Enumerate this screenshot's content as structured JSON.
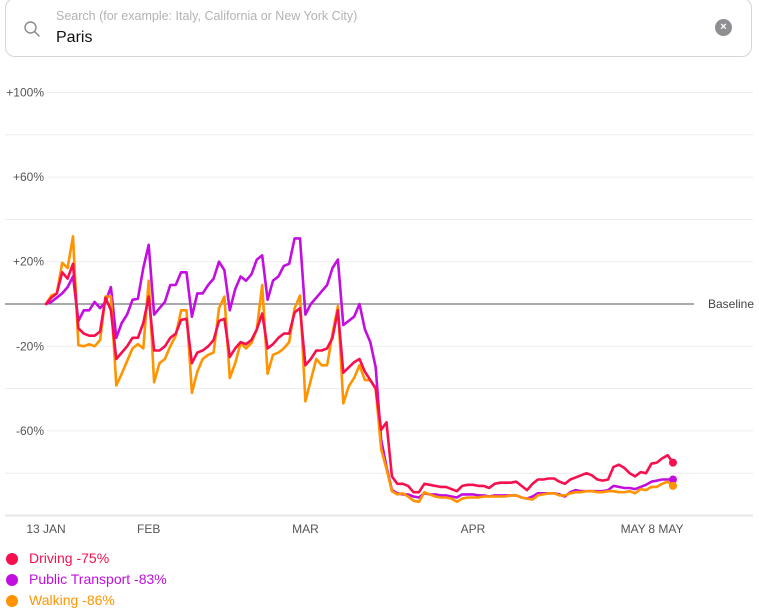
{
  "search": {
    "placeholder": "Search (for example: Italy, California or New York City)",
    "value": "Paris",
    "icon": "search-icon",
    "clear_icon": "clear-circle-icon"
  },
  "legend": [
    {
      "label": "Driving -75%",
      "color": "#f7104e"
    },
    {
      "label": "Public Transport -83%",
      "color": "#c20fe0"
    },
    {
      "label": "Walking -86%",
      "color": "#ff9400"
    }
  ],
  "chart_data": {
    "type": "line",
    "ylim": [
      -100,
      100
    ],
    "y_ticks": [
      {
        "value": 100,
        "label": "+100%"
      },
      {
        "value": 60,
        "label": "+60%"
      },
      {
        "value": 20,
        "label": "+20%"
      },
      {
        "value": -20,
        "label": "-20%"
      },
      {
        "value": -60,
        "label": "-60%"
      }
    ],
    "y_gridlines": [
      100,
      80,
      60,
      40,
      20,
      -20,
      -40,
      -60,
      -80
    ],
    "baseline": {
      "value": 0,
      "label": "Baseline"
    },
    "x_ticks": [
      {
        "index": 0,
        "label": "13 JAN"
      },
      {
        "index": 19,
        "label": "FEB"
      },
      {
        "index": 48,
        "label": "MAR"
      },
      {
        "index": 79,
        "label": "APR"
      },
      {
        "index": 109,
        "label": "MAY"
      },
      {
        "index": 116,
        "label": "8 MAY"
      }
    ],
    "grid": true,
    "legend_position": "bottom-left",
    "x": [
      "13 Jan",
      "14 Jan",
      "15 Jan",
      "16 Jan",
      "17 Jan",
      "18 Jan",
      "19 Jan",
      "20 Jan",
      "21 Jan",
      "22 Jan",
      "23 Jan",
      "24 Jan",
      "25 Jan",
      "26 Jan",
      "27 Jan",
      "28 Jan",
      "29 Jan",
      "30 Jan",
      "31 Jan",
      "1 Feb",
      "2 Feb",
      "3 Feb",
      "4 Feb",
      "5 Feb",
      "6 Feb",
      "7 Feb",
      "8 Feb",
      "9 Feb",
      "10 Feb",
      "11 Feb",
      "12 Feb",
      "13 Feb",
      "14 Feb",
      "15 Feb",
      "16 Feb",
      "17 Feb",
      "18 Feb",
      "19 Feb",
      "20 Feb",
      "21 Feb",
      "22 Feb",
      "23 Feb",
      "24 Feb",
      "25 Feb",
      "26 Feb",
      "27 Feb",
      "28 Feb",
      "29 Feb",
      "1 Mar",
      "2 Mar",
      "3 Mar",
      "4 Mar",
      "5 Mar",
      "6 Mar",
      "7 Mar",
      "8 Mar",
      "9 Mar",
      "10 Mar",
      "11 Mar",
      "12 Mar",
      "13 Mar",
      "14 Mar",
      "15 Mar",
      "16 Mar",
      "17 Mar",
      "18 Mar",
      "19 Mar",
      "20 Mar",
      "21 Mar",
      "22 Mar",
      "23 Mar",
      "24 Mar",
      "25 Mar",
      "26 Mar",
      "27 Mar",
      "28 Mar",
      "29 Mar",
      "30 Mar",
      "31 Mar",
      "1 Apr",
      "2 Apr",
      "3 Apr",
      "4 Apr",
      "5 Apr",
      "6 Apr",
      "7 Apr",
      "8 Apr",
      "9 Apr",
      "10 Apr",
      "11 Apr",
      "12 Apr",
      "13 Apr",
      "14 Apr",
      "15 Apr",
      "16 Apr",
      "17 Apr",
      "18 Apr",
      "19 Apr",
      "20 Apr",
      "21 Apr",
      "22 Apr",
      "23 Apr",
      "24 Apr",
      "25 Apr",
      "26 Apr",
      "27 Apr",
      "28 Apr",
      "29 Apr",
      "30 Apr",
      "1 May",
      "2 May",
      "3 May",
      "4 May",
      "5 May",
      "6 May",
      "7 May",
      "8 May"
    ],
    "series": [
      {
        "name": "Driving",
        "color": "#f7104e",
        "values": [
          0,
          3,
          5,
          15,
          12,
          19,
          -11.5,
          -14,
          -15,
          -15,
          -13,
          3,
          -3,
          -26,
          -23,
          -20,
          -16,
          -16,
          -9,
          3.5,
          -22,
          -22,
          -20,
          -16,
          -14,
          -7.5,
          -7,
          -28,
          -23,
          -22,
          -20,
          -17,
          -8,
          -7,
          -25,
          -21,
          -18,
          -19,
          -17,
          -12,
          -4.5,
          -21,
          -19,
          -16,
          -14,
          -14,
          -4,
          -2,
          -29,
          -26,
          -22,
          -22,
          -21,
          -16,
          -3,
          -32.5,
          -30,
          -27.5,
          -26,
          -32,
          -36,
          -40,
          -59.5,
          -56,
          -81.5,
          -85,
          -85,
          -86,
          -89,
          -89,
          -85,
          -85.5,
          -86,
          -86.5,
          -86.5,
          -87.5,
          -88.5,
          -86,
          -85.5,
          -85.5,
          -86,
          -86,
          -87,
          -85,
          -84.5,
          -84.5,
          -84.5,
          -84,
          -86,
          -88,
          -85,
          -83,
          -83,
          -82.5,
          -82.5,
          -84,
          -85,
          -83,
          -82,
          -81,
          -80,
          -81,
          -83,
          -83.5,
          -83,
          -77,
          -76,
          -77.5,
          -80,
          -81.5,
          -79.5,
          -80,
          -75.5,
          -75,
          -73,
          -71.5,
          -75
        ]
      },
      {
        "name": "Public Transport",
        "color": "#c20fe0",
        "values": [
          0,
          1,
          3,
          5,
          8,
          13,
          -8,
          -3,
          -3,
          1,
          -2,
          1,
          8,
          -16,
          -9,
          -5,
          2,
          2.5,
          17,
          28,
          -5,
          -2,
          1,
          9,
          9,
          15,
          15,
          -6,
          5,
          5,
          9,
          12,
          20,
          16,
          -3,
          7,
          13,
          11,
          14,
          21,
          23,
          2,
          11,
          13,
          18,
          19,
          31,
          31,
          -5,
          0,
          3,
          6,
          9,
          17,
          21,
          -10,
          -8,
          -6,
          0,
          -12,
          -18,
          -30,
          -64,
          -77,
          -88,
          -89.5,
          -90,
          -90,
          -91,
          -91.5,
          -89.5,
          -90,
          -90,
          -90.5,
          -90.5,
          -91,
          -91.5,
          -90,
          -90,
          -90,
          -90.5,
          -90.5,
          -91,
          -90.5,
          -90.5,
          -90.5,
          -90.5,
          -90.5,
          -91.5,
          -92,
          -91,
          -89.5,
          -89.5,
          -89.5,
          -89.5,
          -90,
          -91,
          -89,
          -88,
          -88.5,
          -88.5,
          -88.5,
          -88.5,
          -88.5,
          -88,
          -86,
          -86.5,
          -87,
          -87,
          -87.5,
          -86.5,
          -85.5,
          -84,
          -83.5,
          -83,
          -83,
          -83
        ]
      },
      {
        "name": "Walking",
        "color": "#ff9400",
        "values": [
          0,
          4,
          5,
          19.5,
          17,
          32,
          -19.5,
          -20,
          -19,
          -20,
          -17,
          3.5,
          3.5,
          -38.5,
          -33,
          -27,
          -21,
          -19,
          -21,
          11,
          -37,
          -28,
          -26,
          -20,
          -15,
          -3,
          -3,
          -42,
          -32,
          -26,
          -24,
          -23,
          -2,
          3.5,
          -35,
          -28,
          -18.5,
          -21,
          -18.5,
          -12,
          9,
          -33,
          -24,
          -23,
          -21,
          -18,
          -2,
          4,
          -46,
          -36,
          -26,
          -29,
          -29,
          -14,
          -1,
          -47,
          -39,
          -35,
          -29,
          -36,
          -36,
          -40,
          -68.5,
          -78,
          -88.5,
          -90,
          -89.5,
          -91,
          -93,
          -93.5,
          -89,
          -90,
          -91,
          -91.5,
          -91.5,
          -92,
          -93.5,
          -92,
          -91.5,
          -91.5,
          -91.5,
          -91,
          -91,
          -91,
          -91,
          -91,
          -90.5,
          -90.5,
          -91.5,
          -92,
          -92.5,
          -90.5,
          -90,
          -89.5,
          -89.5,
          -90.5,
          -90.5,
          -89.5,
          -89,
          -89,
          -88.5,
          -88.5,
          -89,
          -89,
          -88.5,
          -88.5,
          -89,
          -89,
          -88.5,
          -89.5,
          -87.5,
          -88,
          -86.5,
          -86.5,
          -85,
          -84,
          -86
        ]
      }
    ]
  }
}
